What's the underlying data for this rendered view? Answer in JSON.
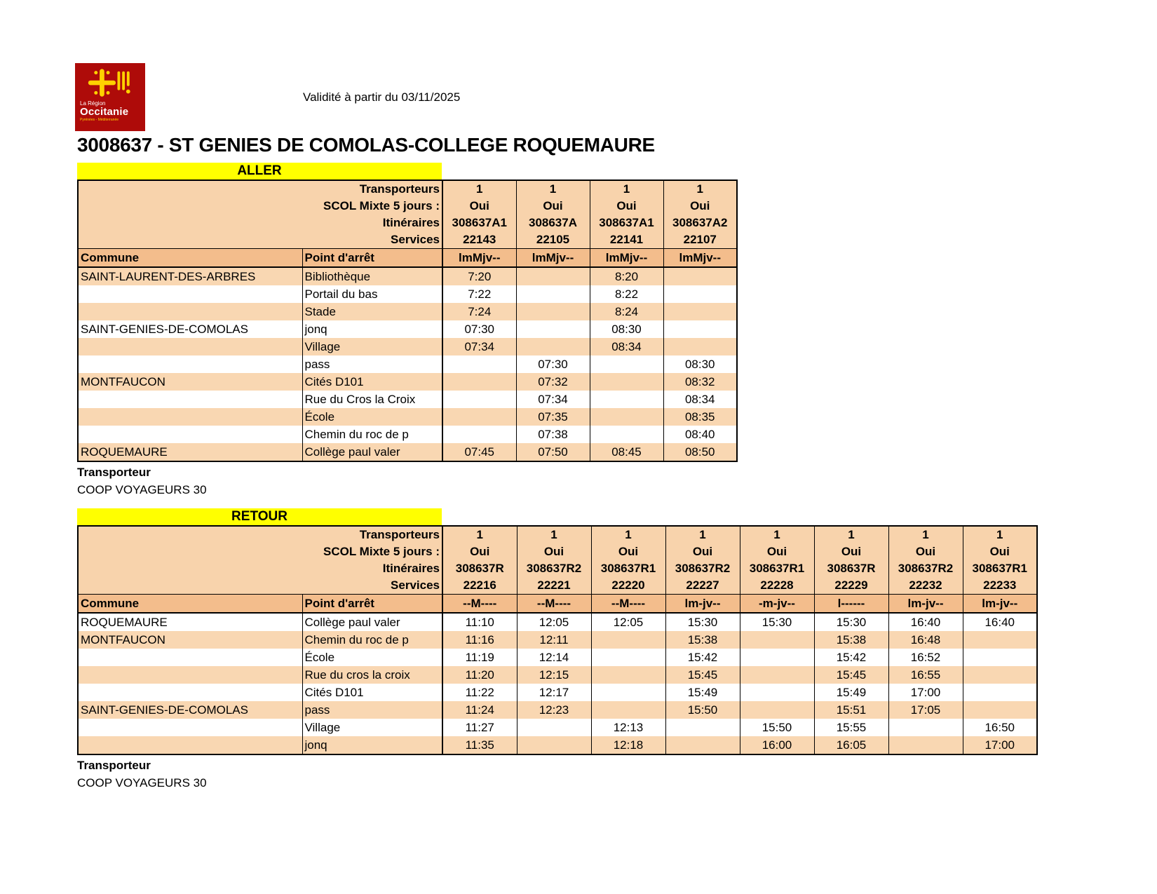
{
  "header": {
    "validity": "Validité à partir du 03/11/2025",
    "title": "3008637 - ST GENIES DE COMOLAS-COLLEGE ROQUEMAURE",
    "logo": {
      "line1": "La Région",
      "line2": "Occitanie",
      "line3": "Pyrénées - Méditerranée"
    }
  },
  "colors": {
    "logo_red": "#AE0B09",
    "logo_yellow": "#FFD100",
    "band_yellow": "#FFFF00",
    "header_peach": "#F8D3AC",
    "header_orange": "#F3BD8C",
    "row_peach": "#F9D7B2"
  },
  "labels": {
    "transporteurs": "Transporteurs",
    "scol_mixte": "SCOL Mixte 5 jours :",
    "itineraires": "Itinéraires",
    "services": "Services",
    "commune": "Commune",
    "point_arret": "Point d'arrêt"
  },
  "sections": [
    {
      "id": "aller",
      "band": "ALLER",
      "columns": [
        {
          "transporteur": "1",
          "scol": "Oui",
          "itineraire": "308637A1",
          "service": "22143",
          "days": "lmMjv--"
        },
        {
          "transporteur": "1",
          "scol": "Oui",
          "itineraire": "308637A",
          "service": "22105",
          "days": "lmMjv--"
        },
        {
          "transporteur": "1",
          "scol": "Oui",
          "itineraire": "308637A1",
          "service": "22141",
          "days": "lmMjv--"
        },
        {
          "transporteur": "1",
          "scol": "Oui",
          "itineraire": "308637A2",
          "service": "22107",
          "days": "lmMjv--"
        }
      ],
      "rows": [
        {
          "commune": "SAINT-LAURENT-DES-ARBRES",
          "stop": "Bibliothèque",
          "times": [
            "7:20",
            "",
            "8:20",
            ""
          ]
        },
        {
          "commune": "",
          "stop": "Portail du bas",
          "times": [
            "7:22",
            "",
            "8:22",
            ""
          ]
        },
        {
          "commune": "",
          "stop": "Stade",
          "times": [
            "7:24",
            "",
            "8:24",
            ""
          ]
        },
        {
          "commune": "SAINT-GENIES-DE-COMOLAS",
          "stop": "jonq",
          "times": [
            "07:30",
            "",
            "08:30",
            ""
          ]
        },
        {
          "commune": "",
          "stop": "Village",
          "times": [
            "07:34",
            "",
            "08:34",
            ""
          ]
        },
        {
          "commune": "",
          "stop": "pass",
          "times": [
            "",
            "07:30",
            "",
            "08:30"
          ]
        },
        {
          "commune": "MONTFAUCON",
          "stop": "Cités D101",
          "times": [
            "",
            "07:32",
            "",
            "08:32"
          ]
        },
        {
          "commune": "",
          "stop": "Rue du Cros la Croix",
          "times": [
            "",
            "07:34",
            "",
            "08:34"
          ]
        },
        {
          "commune": "",
          "stop": "École",
          "times": [
            "",
            "07:35",
            "",
            "08:35"
          ]
        },
        {
          "commune": "",
          "stop": "Chemin du roc de p",
          "times": [
            "",
            "07:38",
            "",
            "08:40"
          ]
        },
        {
          "commune": "ROQUEMAURE",
          "stop": "Collège paul valer",
          "times": [
            "07:45",
            "07:50",
            "08:45",
            "08:50"
          ]
        }
      ],
      "footer": {
        "label": "Transporteur",
        "operator": "COOP VOYAGEURS 30"
      }
    },
    {
      "id": "retour",
      "band": "RETOUR",
      "columns": [
        {
          "transporteur": "1",
          "scol": "Oui",
          "itineraire": "308637R",
          "service": "22216",
          "days": "--M----"
        },
        {
          "transporteur": "1",
          "scol": "Oui",
          "itineraire": "308637R2",
          "service": "22221",
          "days": "--M----"
        },
        {
          "transporteur": "1",
          "scol": "Oui",
          "itineraire": "308637R1",
          "service": "22220",
          "days": "--M----"
        },
        {
          "transporteur": "1",
          "scol": "Oui",
          "itineraire": "308637R2",
          "service": "22227",
          "days": "lm-jv--"
        },
        {
          "transporteur": "1",
          "scol": "Oui",
          "itineraire": "308637R1",
          "service": "22228",
          "days": "-m-jv--"
        },
        {
          "transporteur": "1",
          "scol": "Oui",
          "itineraire": "308637R",
          "service": "22229",
          "days": "l------"
        },
        {
          "transporteur": "1",
          "scol": "Oui",
          "itineraire": "308637R2",
          "service": "22232",
          "days": "lm-jv--"
        },
        {
          "transporteur": "1",
          "scol": "Oui",
          "itineraire": "308637R1",
          "service": "22233",
          "days": "lm-jv--"
        }
      ],
      "rows": [
        {
          "commune": "ROQUEMAURE",
          "stop": "Collège paul valer",
          "times": [
            "11:10",
            "12:05",
            "12:05",
            "15:30",
            "15:30",
            "15:30",
            "16:40",
            "16:40"
          ]
        },
        {
          "commune": "MONTFAUCON",
          "stop": "Chemin du roc de p",
          "times": [
            "11:16",
            "12:11",
            "",
            "15:38",
            "",
            "15:38",
            "16:48",
            ""
          ]
        },
        {
          "commune": "",
          "stop": "École",
          "times": [
            "11:19",
            "12:14",
            "",
            "15:42",
            "",
            "15:42",
            "16:52",
            ""
          ]
        },
        {
          "commune": "",
          "stop": "Rue du cros la croix",
          "times": [
            "11:20",
            "12:15",
            "",
            "15:45",
            "",
            "15:45",
            "16:55",
            ""
          ]
        },
        {
          "commune": "",
          "stop": "Cités D101",
          "times": [
            "11:22",
            "12:17",
            "",
            "15:49",
            "",
            "15:49",
            "17:00",
            ""
          ]
        },
        {
          "commune": "SAINT-GENIES-DE-COMOLAS",
          "stop": "pass",
          "times": [
            "11:24",
            "12:23",
            "",
            "15:50",
            "",
            "15:51",
            "17:05",
            ""
          ]
        },
        {
          "commune": "",
          "stop": "Village",
          "times": [
            "11:27",
            "",
            "12:13",
            "",
            "15:50",
            "15:55",
            "",
            "16:50"
          ]
        },
        {
          "commune": "",
          "stop": "jonq",
          "times": [
            "11:35",
            "",
            "12:18",
            "",
            "16:00",
            "16:05",
            "",
            "17:00"
          ]
        }
      ],
      "footer": {
        "label": "Transporteur",
        "operator": "COOP VOYAGEURS 30"
      }
    }
  ]
}
